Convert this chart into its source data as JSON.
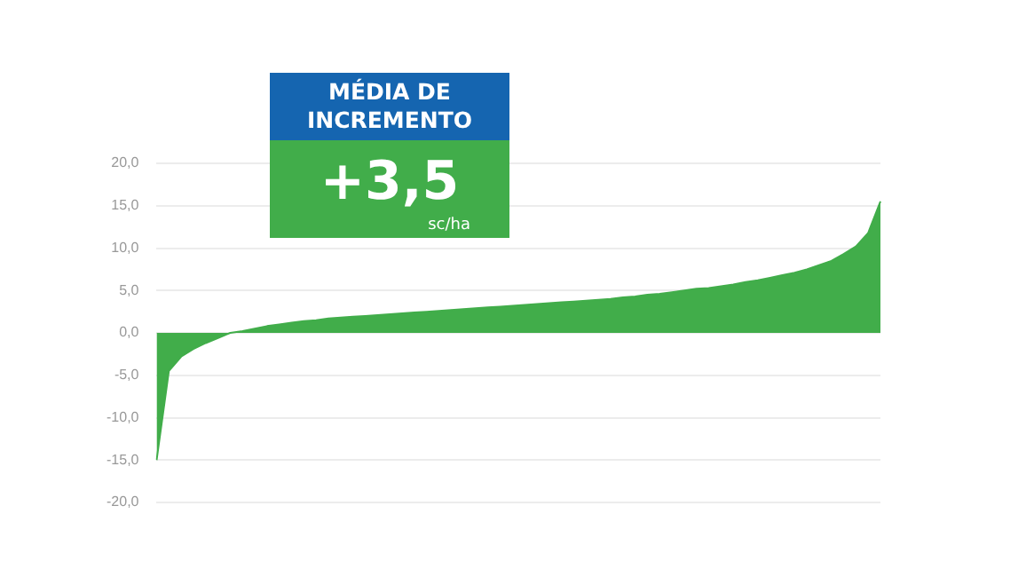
{
  "chart_data": {
    "type": "area",
    "categories": [
      null,
      null,
      null,
      null,
      null,
      null,
      null,
      null,
      null,
      null,
      null,
      null,
      null,
      null,
      null,
      null,
      null,
      null,
      null,
      null,
      null,
      null,
      null,
      null,
      null,
      null,
      null,
      null,
      null,
      null,
      null,
      null,
      null,
      null,
      null,
      null,
      null,
      null,
      null,
      null,
      null,
      null,
      null,
      null,
      null,
      null,
      null,
      null,
      null,
      null,
      null,
      null,
      null,
      null,
      null,
      null,
      null,
      null,
      null,
      null
    ],
    "series": [
      {
        "color": "#41ad4a",
        "values": [
          -15,
          -4.5,
          -2.8,
          -1.9,
          -1.2,
          -0.6,
          0,
          0.2,
          0.5,
          0.8,
          1.0,
          1.2,
          1.4,
          1.5,
          1.7,
          1.8,
          1.9,
          2.0,
          2.1,
          2.2,
          2.3,
          2.4,
          2.5,
          2.6,
          2.7,
          2.8,
          2.9,
          3.0,
          3.1,
          3.2,
          3.3,
          3.4,
          3.5,
          3.6,
          3.7,
          3.8,
          3.9,
          4.0,
          4.2,
          4.3,
          4.5,
          4.6,
          4.8,
          5.0,
          5.2,
          5.3,
          5.5,
          5.7,
          6.0,
          6.2,
          6.5,
          6.8,
          7.1,
          7.5,
          8.0,
          8.5,
          9.3,
          10.2,
          11.8,
          15.5
        ]
      }
    ],
    "ylim": [
      -20,
      20
    ],
    "yticks": [
      {
        "value": -20,
        "label": "-20,0"
      },
      {
        "value": -15,
        "label": "-15,0"
      },
      {
        "value": -10,
        "label": "-10,0"
      },
      {
        "value": -5,
        "label": "-5,0"
      },
      {
        "value": 0,
        "label": "0,0"
      },
      {
        "value": 5,
        "label": "5,0"
      },
      {
        "value": 10,
        "label": "10,0"
      },
      {
        "value": 15,
        "label": "15,0"
      },
      {
        "value": 20,
        "label": "20,0"
      }
    ],
    "grid": "y",
    "legend": false,
    "tick_labels": "y",
    "marker": "none",
    "annotations": [
      "MÉDIA DE INCREMENTO",
      "+3,5",
      "sc/ha"
    ]
  }
}
